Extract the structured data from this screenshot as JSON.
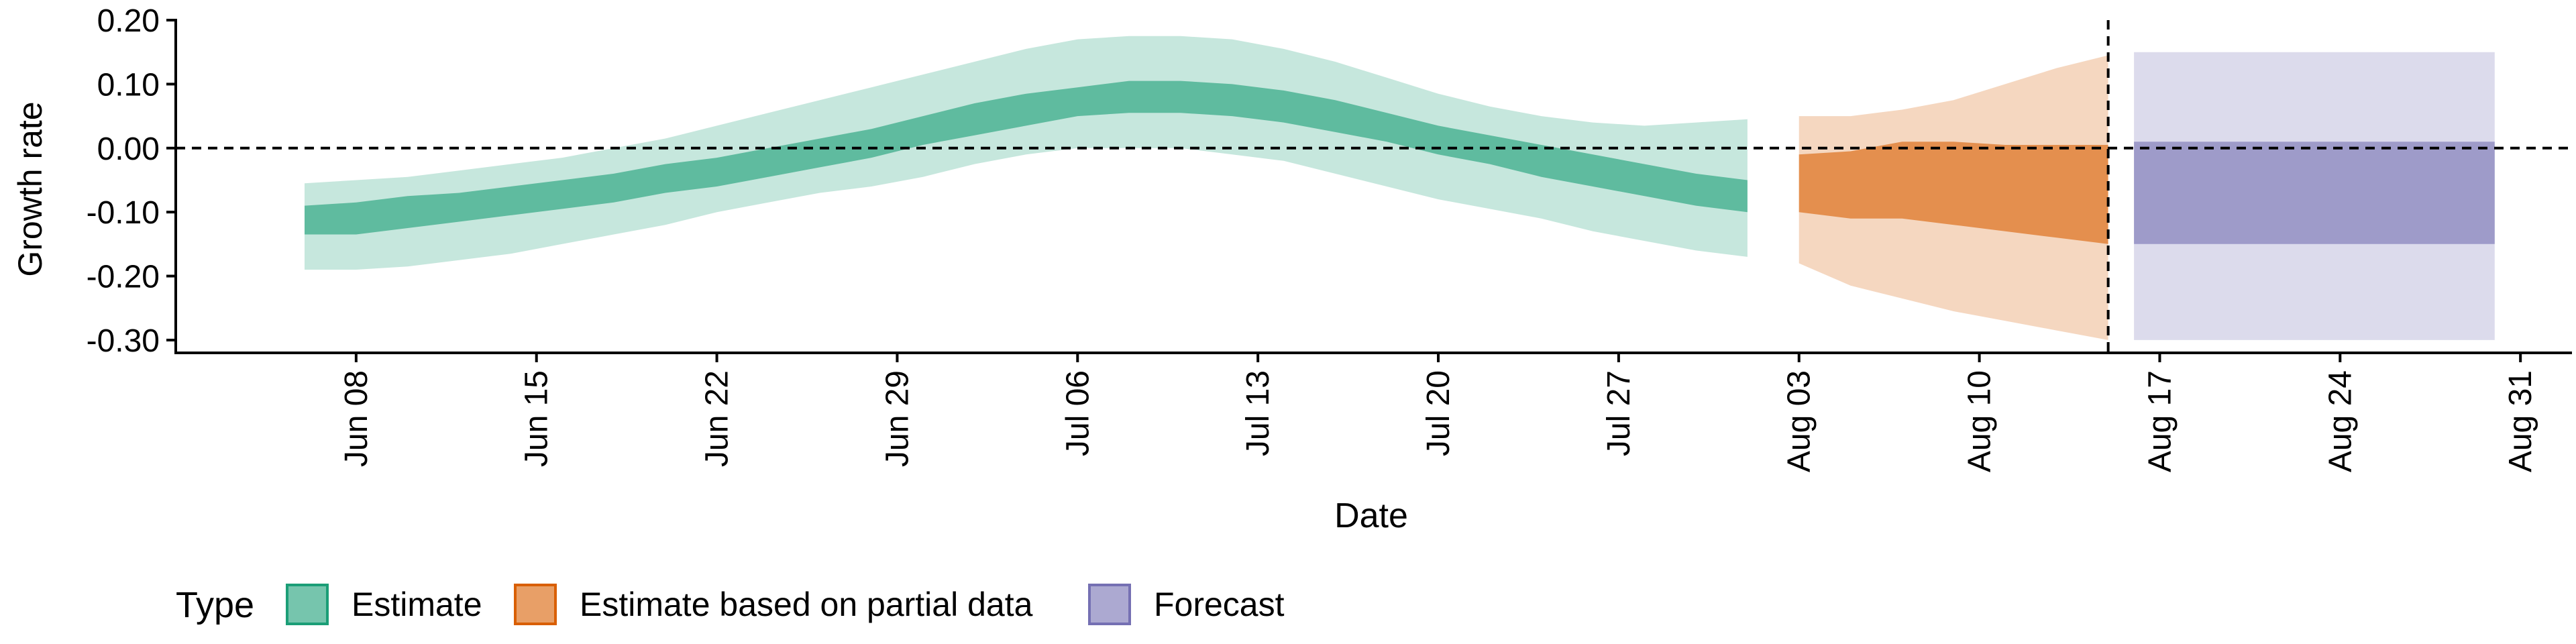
{
  "chart_data": {
    "type": "area",
    "xlabel": "Date",
    "ylabel": "Growth rate",
    "x_ticks": [
      "Jun 08",
      "Jun 15",
      "Jun 22",
      "Jun 29",
      "Jul 06",
      "Jul 13",
      "Jul 20",
      "Jul 27",
      "Aug 03",
      "Aug 10",
      "Aug 17",
      "Aug 24",
      "Aug 31"
    ],
    "y_ticks": [
      "0.20",
      "0.10",
      "0.00",
      "-0.10",
      "-0.20",
      "-0.30"
    ],
    "ylim": [
      -0.32,
      0.2
    ],
    "xlim": [
      "2020-06-01",
      "2020-09-02"
    ],
    "reference_lines": {
      "horizontal_y": 0.0,
      "vertical_x": "2020-08-15"
    },
    "legend": {
      "title": "Type",
      "position": "bottom",
      "entries": [
        "Estimate",
        "Estimate based on partial data",
        "Forecast"
      ]
    },
    "colors": {
      "Estimate": "#1b9e77",
      "Estimate based on partial data": "#d95f02",
      "Forecast": "#7570b3",
      "axis": "#000000"
    },
    "series": [
      {
        "name": "Estimate",
        "x": [
          "2020-06-06",
          "2020-06-08",
          "2020-06-10",
          "2020-06-12",
          "2020-06-14",
          "2020-06-16",
          "2020-06-18",
          "2020-06-20",
          "2020-06-22",
          "2020-06-24",
          "2020-06-26",
          "2020-06-28",
          "2020-06-30",
          "2020-07-02",
          "2020-07-04",
          "2020-07-06",
          "2020-07-08",
          "2020-07-10",
          "2020-07-12",
          "2020-07-14",
          "2020-07-16",
          "2020-07-18",
          "2020-07-20",
          "2020-07-22",
          "2020-07-24",
          "2020-07-26",
          "2020-07-28",
          "2020-07-30",
          "2020-08-01"
        ],
        "median": [
          -0.12,
          -0.115,
          -0.11,
          -0.1,
          -0.09,
          -0.08,
          -0.07,
          -0.055,
          -0.045,
          -0.03,
          -0.01,
          0.005,
          0.025,
          0.045,
          0.06,
          0.075,
          0.085,
          0.085,
          0.08,
          0.07,
          0.05,
          0.035,
          0.015,
          0.0,
          -0.02,
          -0.035,
          -0.055,
          -0.07,
          -0.085
        ],
        "lower_50": [
          -0.135,
          -0.135,
          -0.125,
          -0.115,
          -0.105,
          -0.095,
          -0.085,
          -0.07,
          -0.06,
          -0.045,
          -0.03,
          -0.015,
          0.005,
          0.02,
          0.035,
          0.05,
          0.055,
          0.055,
          0.05,
          0.04,
          0.025,
          0.01,
          -0.01,
          -0.025,
          -0.045,
          -0.06,
          -0.075,
          -0.09,
          -0.1
        ],
        "upper_50": [
          -0.09,
          -0.085,
          -0.075,
          -0.07,
          -0.06,
          -0.05,
          -0.04,
          -0.025,
          -0.015,
          0.0,
          0.015,
          0.03,
          0.05,
          0.07,
          0.085,
          0.095,
          0.105,
          0.105,
          0.1,
          0.09,
          0.075,
          0.055,
          0.035,
          0.02,
          0.005,
          -0.01,
          -0.025,
          -0.04,
          -0.05
        ],
        "lower_90": [
          -0.19,
          -0.19,
          -0.185,
          -0.175,
          -0.165,
          -0.15,
          -0.135,
          -0.12,
          -0.1,
          -0.085,
          -0.07,
          -0.06,
          -0.045,
          -0.025,
          -0.01,
          0.0,
          0.0,
          0.0,
          -0.01,
          -0.02,
          -0.04,
          -0.06,
          -0.08,
          -0.095,
          -0.11,
          -0.13,
          -0.145,
          -0.16,
          -0.17
        ],
        "upper_90": [
          -0.055,
          -0.05,
          -0.045,
          -0.035,
          -0.025,
          -0.015,
          0.0,
          0.015,
          0.035,
          0.055,
          0.075,
          0.095,
          0.115,
          0.135,
          0.155,
          0.17,
          0.175,
          0.175,
          0.17,
          0.155,
          0.135,
          0.11,
          0.085,
          0.065,
          0.05,
          0.04,
          0.035,
          0.04,
          0.045
        ]
      },
      {
        "name": "Estimate based on partial data",
        "x": [
          "2020-08-03",
          "2020-08-05",
          "2020-08-07",
          "2020-08-09",
          "2020-08-11",
          "2020-08-13",
          "2020-08-15"
        ],
        "median": [
          -0.06,
          -0.07,
          -0.07,
          -0.075,
          -0.085,
          -0.09,
          -0.1
        ],
        "lower_50": [
          -0.1,
          -0.11,
          -0.11,
          -0.12,
          -0.13,
          -0.14,
          -0.15
        ],
        "upper_50": [
          -0.01,
          -0.005,
          0.01,
          0.01,
          0.005,
          0.005,
          0.005
        ],
        "lower_90": [
          -0.18,
          -0.215,
          -0.235,
          -0.255,
          -0.27,
          -0.285,
          -0.3
        ],
        "upper_90": [
          0.05,
          0.05,
          0.06,
          0.075,
          0.1,
          0.125,
          0.145
        ]
      },
      {
        "name": "Forecast",
        "x": [
          "2020-08-16",
          "2020-08-30"
        ],
        "median": [
          -0.07,
          -0.07
        ],
        "lower_50": [
          -0.15,
          -0.15
        ],
        "upper_50": [
          0.01,
          0.01
        ],
        "lower_90": [
          -0.3,
          -0.3
        ],
        "upper_90": [
          0.15,
          0.15
        ]
      }
    ]
  }
}
